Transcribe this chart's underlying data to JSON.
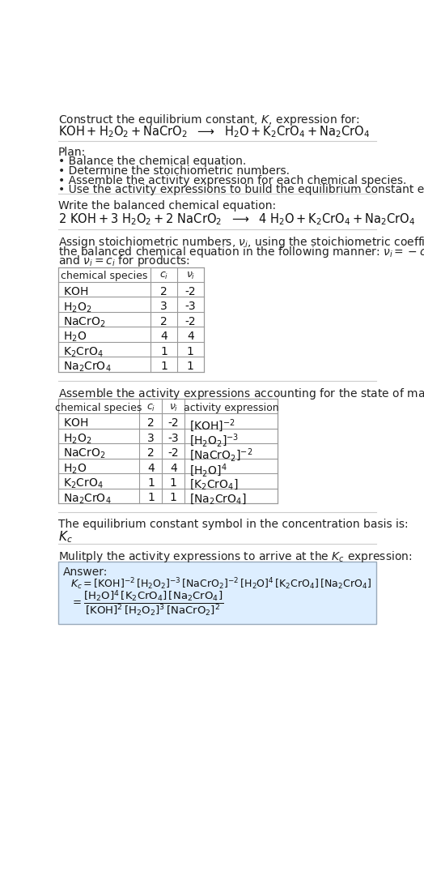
{
  "bg_color": "#ffffff",
  "text_color": "#222222",
  "table_border_color": "#999999",
  "answer_box_color": "#ddeeff",
  "answer_box_border": "#99aabb",
  "species_math": [
    "$\\mathrm{KOH}$",
    "$\\mathrm{H_2O_2}$",
    "$\\mathrm{NaCrO_2}$",
    "$\\mathrm{H_2O}$",
    "$\\mathrm{K_2CrO_4}$",
    "$\\mathrm{Na_2CrO_4}$"
  ],
  "table1_ci": [
    "2",
    "3",
    "2",
    "4",
    "1",
    "1"
  ],
  "table1_vi": [
    "-2",
    "-3",
    "-2",
    "4",
    "1",
    "1"
  ],
  "activity_exprs": [
    "$[\\mathrm{KOH}]^{-2}$",
    "$[\\mathrm{H_2O_2}]^{-3}$",
    "$[\\mathrm{NaCrO_2}]^{-2}$",
    "$[\\mathrm{H_2O}]^{4}$",
    "$[\\mathrm{K_2CrO_4}]$",
    "$[\\mathrm{Na_2CrO_4}]$"
  ]
}
